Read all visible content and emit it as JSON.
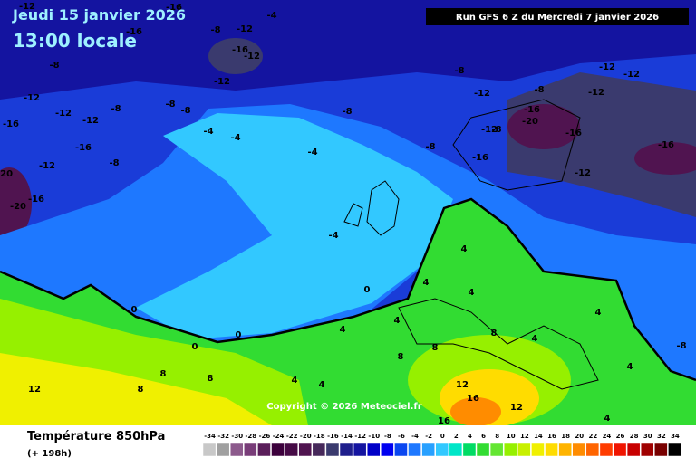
{
  "header": {
    "date": "Jeudi 15 janvier 2026",
    "time": "13:00 locale",
    "run": "Run GFS 6 Z du Mercredi 7 janvier 2026"
  },
  "footer": {
    "title": "Température 850hPa",
    "lead": "(+ 198h)",
    "copyright": "Copyright © 2026 Meteociel.fr"
  },
  "legend": {
    "values": [
      -34,
      -32,
      -30,
      -28,
      -26,
      -24,
      -22,
      -20,
      -18,
      -16,
      -14,
      -12,
      -10,
      -8,
      -6,
      -4,
      -2,
      0,
      2,
      4,
      6,
      8,
      10,
      12,
      14,
      16,
      18,
      20,
      22,
      24,
      26,
      28,
      30,
      32,
      34
    ],
    "colors": [
      "#c8c8c8",
      "#a0a0a0",
      "#8c5a8c",
      "#783c78",
      "#5a1e5a",
      "#3c003c",
      "#460a46",
      "#501450",
      "#46285a",
      "#3a3a6e",
      "#1e1e8c",
      "#1414a0",
      "#0000c8",
      "#0000f0",
      "#0a46f0",
      "#1e78ff",
      "#28a0ff",
      "#32c8ff",
      "#00e6c8",
      "#00dc64",
      "#32dc32",
      "#64e632",
      "#96f000",
      "#c8f000",
      "#f0f000",
      "#ffdc00",
      "#ffb400",
      "#ff8c00",
      "#ff6400",
      "#ff3c00",
      "#f01400",
      "#c80000",
      "#a00000",
      "#780000",
      "#000000"
    ]
  },
  "map": {
    "labels": [
      -12,
      -16,
      -4,
      -8,
      -12,
      -16,
      -16,
      -12,
      -8,
      -12,
      -12,
      -12,
      -16,
      -12,
      -8,
      -8,
      -8,
      -16,
      -8,
      -12,
      -20,
      -16,
      -20,
      -4,
      -4,
      -4,
      -8,
      -8,
      -12,
      -8,
      -16,
      -20,
      -12,
      -8,
      -8,
      -16,
      -16,
      -12,
      -12,
      -12,
      -16,
      -12,
      -4,
      0,
      0,
      0,
      0,
      4,
      4,
      4,
      4,
      4,
      8,
      8,
      8,
      4,
      4,
      8,
      8,
      8,
      12,
      4,
      4,
      12,
      16,
      16,
      12,
      4,
      -8,
      4
    ]
  }
}
